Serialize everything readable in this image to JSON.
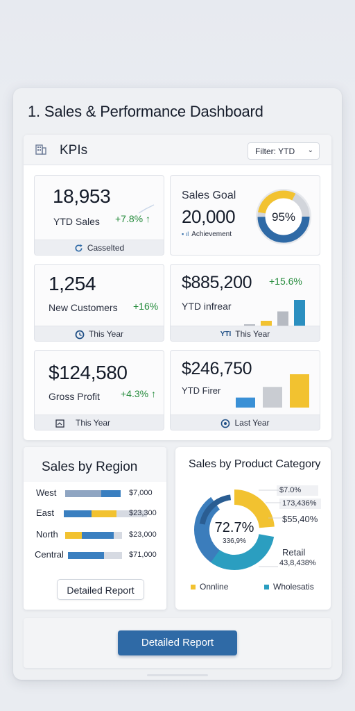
{
  "dashboard": {
    "title": "1. Sales & Performance Dashboard"
  },
  "kpis": {
    "title": "KPIs",
    "filter_label": "Filter: YTD",
    "cards": {
      "ytd_sales": {
        "value": "18,953",
        "label": "YTD Sales",
        "change": "+7.8% ↑",
        "footer": "Casselted"
      },
      "sales_goal": {
        "label": "Sales Goal",
        "value": "20,000",
        "caption": "Achievement",
        "percent": "95%",
        "progress": 0.95
      },
      "new_customers": {
        "value": "1,254",
        "label": "New Customers",
        "change": "+16%",
        "footer": "This Year"
      },
      "ytd_revenue": {
        "value": "$885,200",
        "change": "+15.6%",
        "label": "YTD infrear",
        "footer": "This Year",
        "bars": [
          0.08,
          0.18,
          0.45,
          0.78
        ]
      },
      "gross_profit": {
        "value": "$124,580",
        "label": "Gross Profit",
        "change": "+4.3% ↑",
        "footer": "This Year"
      },
      "ytd_profit": {
        "value": "$246,750",
        "label": "YTD Firer",
        "footer": "Last Year",
        "bars": [
          0.3,
          0.62,
          1.0
        ]
      }
    }
  },
  "sales_by_region": {
    "title": "Sales by Region",
    "rows": [
      {
        "name": "West",
        "value": "$7,000"
      },
      {
        "name": "East",
        "value": "$23,300"
      },
      {
        "name": "North",
        "value": "$23,000"
      },
      {
        "name": "Central",
        "value": "$71,000"
      }
    ],
    "button_label": "Detailed Report"
  },
  "sales_by_category": {
    "title": "Sales by Product Category",
    "center_value": "72.7%",
    "center_sub": "336,9%",
    "labels": [
      "$7.0%",
      "173,436%",
      "$55,40%",
      "Retail",
      "43,8,438%"
    ],
    "legend": [
      "Onnline",
      "Wholesatis"
    ]
  },
  "footer": {
    "button_label": "Detailed Report"
  },
  "colors": {
    "primary": "#2f6aa6",
    "yellow": "#f2c230",
    "green": "#238a3a",
    "gray": "#b6bac2"
  }
}
